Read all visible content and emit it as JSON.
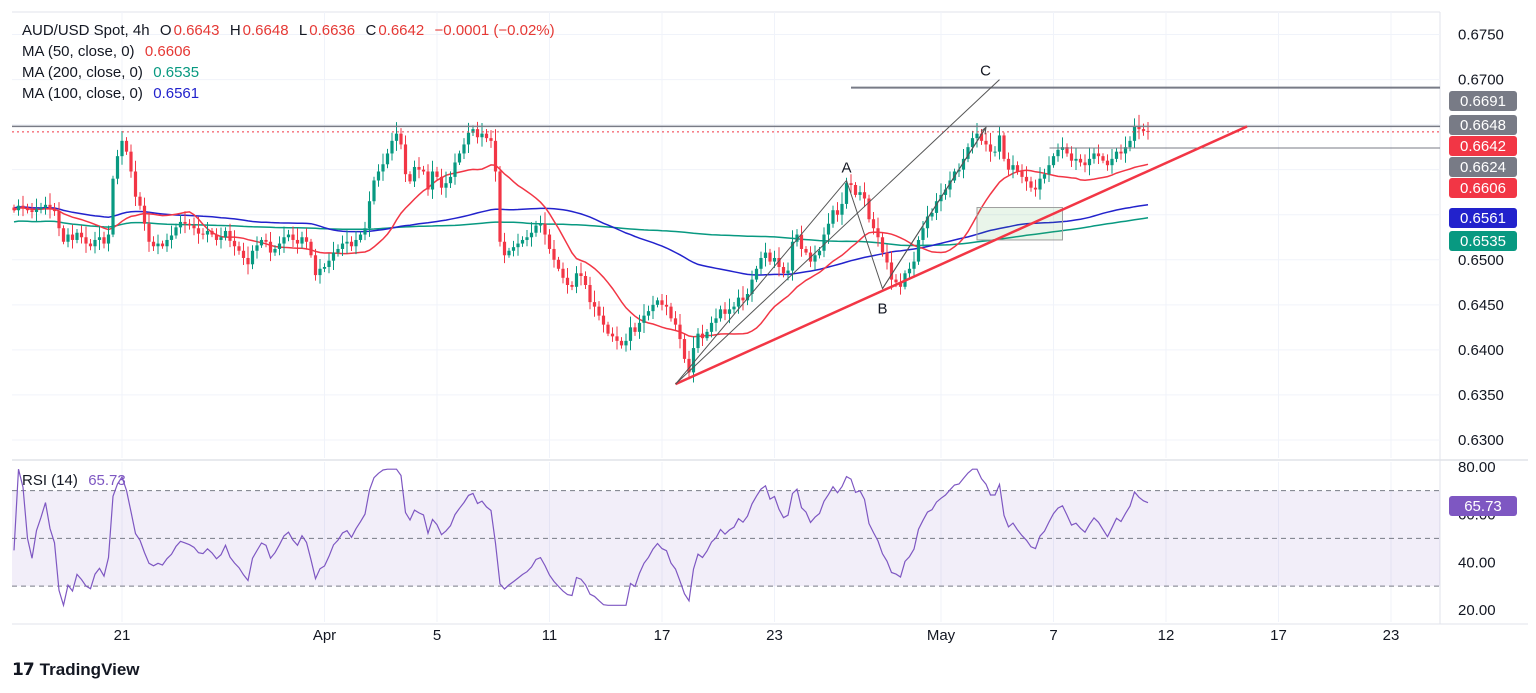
{
  "header": {
    "symbol": "AUD/USD Spot, 4h",
    "open_label": "O",
    "open": "0.6643",
    "high_label": "H",
    "high": "0.6648",
    "low_label": "L",
    "low": "0.6636",
    "close_label": "C",
    "close": "0.6642",
    "change": "−0.0001 (−0.02%)"
  },
  "indicators": [
    {
      "label": "MA (50, close, 0)",
      "value": "0.6606",
      "color": "#f23645"
    },
    {
      "label": "MA (200, close, 0)",
      "value": "0.6535",
      "color": "#089981"
    },
    {
      "label": "MA (100, close, 0)",
      "value": "0.6561",
      "color": "#2222cc"
    }
  ],
  "rsi": {
    "label": "RSI (14)",
    "value": "65.73",
    "color": "#7e57c2"
  },
  "branding": {
    "name": "TradingView"
  },
  "colors": {
    "up": "#089981",
    "down": "#f23645",
    "grid": "#f0f3fa"
  },
  "chart_data": [
    {
      "type": "candlestick",
      "title": "AUD/USD Spot, 4h",
      "ylim": [
        0.628,
        0.6775
      ],
      "price_ticks": [
        "0.6750",
        "0.6700",
        "0.6650",
        "0.6600",
        "0.6550",
        "0.6500",
        "0.6450",
        "0.6400",
        "0.6350",
        "0.6300"
      ],
      "time_ticks": [
        {
          "label": "21",
          "bar": 24
        },
        {
          "label": "Apr",
          "bar": 69
        },
        {
          "label": "5",
          "bar": 94
        },
        {
          "label": "11",
          "bar": 119
        },
        {
          "label": "17",
          "bar": 144
        },
        {
          "label": "23",
          "bar": 169
        },
        {
          "label": "May",
          "bar": 206
        },
        {
          "label": "7",
          "bar": 231
        },
        {
          "label": "12",
          "bar": 256
        },
        {
          "label": "17",
          "bar": 281
        },
        {
          "label": "23",
          "bar": 306
        }
      ],
      "closes": [
        0.6555,
        0.656,
        0.6558,
        0.6555,
        0.6553,
        0.6556,
        0.6558,
        0.6561,
        0.6557,
        0.6554,
        0.6535,
        0.652,
        0.6528,
        0.6522,
        0.653,
        0.6525,
        0.6518,
        0.6515,
        0.6522,
        0.6525,
        0.6518,
        0.6528,
        0.659,
        0.6615,
        0.6632,
        0.662,
        0.6598,
        0.657,
        0.656,
        0.654,
        0.652,
        0.6515,
        0.6518,
        0.6515,
        0.6522,
        0.6527,
        0.6536,
        0.6542,
        0.654,
        0.6538,
        0.6535,
        0.6529,
        0.6528,
        0.6532,
        0.6528,
        0.6522,
        0.6525,
        0.6532,
        0.6521,
        0.6515,
        0.651,
        0.6502,
        0.6495,
        0.651,
        0.6516,
        0.6522,
        0.652,
        0.6508,
        0.6512,
        0.6518,
        0.6525,
        0.6528,
        0.6522,
        0.6518,
        0.6525,
        0.652,
        0.6505,
        0.6483,
        0.649,
        0.6492,
        0.6499,
        0.6508,
        0.6512,
        0.6518,
        0.652,
        0.6515,
        0.6522,
        0.6528,
        0.6535,
        0.6565,
        0.6588,
        0.6598,
        0.6606,
        0.6618,
        0.6632,
        0.664,
        0.6628,
        0.6595,
        0.6587,
        0.6603,
        0.66,
        0.6598,
        0.6578,
        0.6598,
        0.6592,
        0.658,
        0.6585,
        0.6592,
        0.6608,
        0.6618,
        0.6628,
        0.6641,
        0.6645,
        0.6636,
        0.664,
        0.6635,
        0.6632,
        0.6598,
        0.652,
        0.6505,
        0.651,
        0.6514,
        0.6518,
        0.6522,
        0.6525,
        0.653,
        0.6538,
        0.654,
        0.6528,
        0.6512,
        0.65,
        0.649,
        0.648,
        0.6472,
        0.647,
        0.6485,
        0.6482,
        0.6472,
        0.6453,
        0.6448,
        0.6438,
        0.6428,
        0.6418,
        0.6415,
        0.641,
        0.6405,
        0.641,
        0.6425,
        0.642,
        0.643,
        0.6438,
        0.6443,
        0.645,
        0.6455,
        0.645,
        0.6448,
        0.6435,
        0.6428,
        0.6412,
        0.639,
        0.6375,
        0.6402,
        0.6418,
        0.6413,
        0.642,
        0.643,
        0.6435,
        0.6445,
        0.644,
        0.6445,
        0.6448,
        0.6458,
        0.6455,
        0.6462,
        0.6478,
        0.649,
        0.6502,
        0.6508,
        0.6498,
        0.6502,
        0.6492,
        0.6485,
        0.6488,
        0.652,
        0.6528,
        0.6512,
        0.6508,
        0.6498,
        0.6505,
        0.651,
        0.6528,
        0.654,
        0.6555,
        0.655,
        0.6562,
        0.6585,
        0.6583,
        0.6572,
        0.6575,
        0.6568,
        0.6545,
        0.6535,
        0.6525,
        0.6508,
        0.6497,
        0.6478,
        0.6475,
        0.647,
        0.6485,
        0.649,
        0.6498,
        0.6522,
        0.6535,
        0.6548,
        0.6552,
        0.6565,
        0.6572,
        0.6578,
        0.6588,
        0.6598,
        0.66,
        0.6612,
        0.6625,
        0.6635,
        0.664,
        0.6632,
        0.6628,
        0.662,
        0.662,
        0.6638,
        0.6612,
        0.66,
        0.6605,
        0.6598,
        0.6592,
        0.6587,
        0.658,
        0.6578,
        0.659,
        0.6595,
        0.6605,
        0.6615,
        0.6622,
        0.6625,
        0.6618,
        0.661,
        0.6612,
        0.6608,
        0.6605,
        0.6612,
        0.6618,
        0.6615,
        0.661,
        0.6605,
        0.6612,
        0.662,
        0.6618,
        0.6625,
        0.6632,
        0.6648,
        0.6645,
        0.6643,
        0.6642
      ],
      "lines": {
        "A": {
          "bar": 185,
          "price": 0.6588
        },
        "B": {
          "bar": 193,
          "price": 0.6468
        },
        "C": {
          "bar": 219,
          "price": 0.67
        },
        "swing_low": {
          "bar": 147,
          "price": 0.6362
        },
        "trendline_end": {
          "bar": 274,
          "price": 0.6648
        },
        "c_target_end": {
          "bar": 216,
          "price": 0.6647
        },
        "support_line": {
          "from_bar": 239,
          "price": 0.6624
        },
        "resistance_line": {
          "from_bar": 186,
          "price": 0.6691
        },
        "box": {
          "from_bar": 214,
          "to_bar": 233,
          "high": 0.6558,
          "low": 0.6522
        }
      },
      "price_labels": [
        {
          "value": "0.6691",
          "color": "#787b86",
          "price": 0.6691
        },
        {
          "value": "0.6648",
          "color": "#787b86",
          "price": 0.6648
        },
        {
          "value": "0.6642",
          "color": "#f23645",
          "price": 0.6642
        },
        {
          "value": "0.6624",
          "color": "#787b86",
          "price": 0.6624
        },
        {
          "value": "0.6606",
          "color": "#f23645",
          "price": 0.6606
        },
        {
          "value": "0.6561",
          "color": "#2222cc",
          "price": 0.6561
        },
        {
          "value": "0.6535",
          "color": "#089981",
          "price": 0.6535
        }
      ],
      "wave_labels": [
        "A",
        "B",
        "C"
      ]
    },
    {
      "type": "line",
      "title": "RSI (14)",
      "ylim": [
        15,
        82
      ],
      "ticks": [
        "80.00",
        "60.00",
        "40.00",
        "20.00"
      ],
      "bands": [
        70,
        50,
        30
      ],
      "current_label": "65.73"
    }
  ]
}
